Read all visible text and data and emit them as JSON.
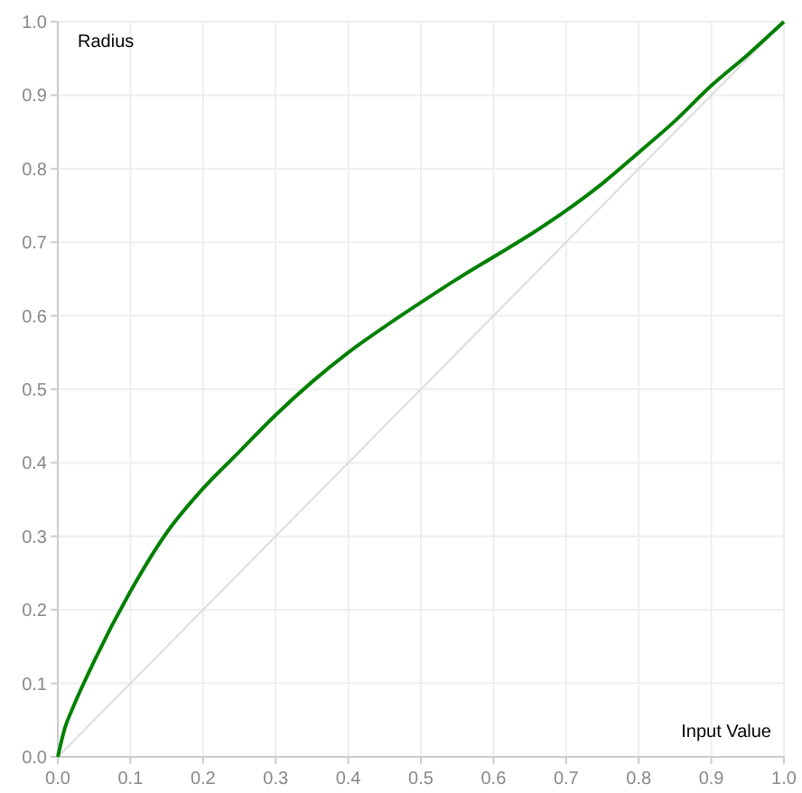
{
  "chart_data": {
    "type": "line",
    "xlabel": "Input Value",
    "ylabel": "Radius",
    "grid": true,
    "marker": "none",
    "line_style": "solid",
    "xlim": [
      0,
      1
    ],
    "ylim": [
      0,
      1
    ],
    "xticks": [
      {
        "value": 0,
        "label": "0.0"
      },
      0.1,
      0.2,
      0.3,
      0.4,
      0.5,
      0.6,
      0.7,
      0.8,
      0.9,
      {
        "value": 1,
        "label": "1.0"
      }
    ],
    "yticks": [
      {
        "value": 0,
        "label": "0.0"
      },
      0.1,
      0.2,
      0.3,
      0.4,
      0.5,
      0.6,
      0.7,
      0.8,
      0.9,
      {
        "value": 1,
        "label": "1.0"
      }
    ],
    "series": [
      {
        "color": "#dddddd",
        "x": [
          0,
          1
        ],
        "values": [
          0,
          1
        ]
      },
      {
        "color": "#008000",
        "x": [
          0,
          0.01,
          0.02,
          0.05,
          0.1,
          0.15,
          0.2,
          0.25,
          0.3,
          0.35,
          0.4,
          0.45,
          0.5,
          0.55,
          0.6,
          0.65,
          0.7,
          0.75,
          0.8,
          0.85,
          0.9,
          0.95,
          1
        ],
        "values": [
          0,
          0.04,
          0.065,
          0.13,
          0.225,
          0.305,
          0.365,
          0.415,
          0.465,
          0.51,
          0.55,
          0.585,
          0.618,
          0.65,
          0.68,
          0.71,
          0.743,
          0.78,
          0.822,
          0.865,
          0.913,
          0.955,
          1
        ]
      }
    ]
  }
}
